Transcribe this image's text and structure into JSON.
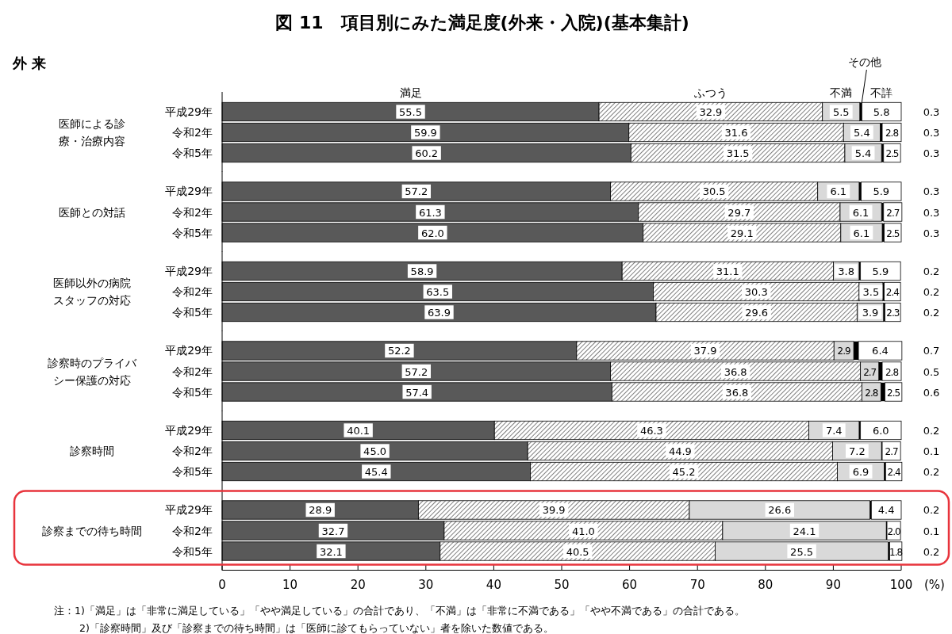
{
  "chart_data": [
    {
      "type": "bar",
      "orientation": "horizontal",
      "stacked": true,
      "title": "図 11　項目別にみた満足度(外来・入院)(基本集計)",
      "annotations": [
        "外 来"
      ],
      "ylabel": "医師による診療・治療内容",
      "categories": [
        "平成29年",
        "令和2年",
        "令和5年"
      ],
      "legend": "top",
      "xlim": [
        0,
        100
      ],
      "tick_labels": "y",
      "series": [
        {
          "name": "満足",
          "color": "#595959",
          "values": [
            55.5,
            59.9,
            60.2
          ],
          "value_labels": [
            "55.5",
            "59.9",
            "60.2"
          ]
        },
        {
          "name": "ふつう",
          "color": "#000000",
          "values": [
            32.9,
            31.6,
            31.5
          ],
          "value_labels": [
            "32.9",
            "31.6",
            "31.5"
          ]
        },
        {
          "name": "不満",
          "color": "#d9d9d9",
          "values": [
            5.5,
            5.4,
            5.4
          ],
          "value_labels": [
            "5.5",
            "5.4",
            "5.4"
          ]
        },
        {
          "name": "その他",
          "color": "#000000",
          "values": [
            0.3,
            0.3,
            0.3
          ],
          "value_labels": [
            "0.3",
            "0.3",
            "0.3"
          ]
        },
        {
          "name": "不詳",
          "color": "#ffffff",
          "values": [
            5.8,
            2.8,
            2.5
          ],
          "value_labels": [
            "5.8",
            "2.8",
            "2.5"
          ]
        }
      ]
    },
    {
      "type": "bar",
      "orientation": "horizontal",
      "stacked": true,
      "ylabel": "医師との対話",
      "categories": [
        "平成29年",
        "令和2年",
        "令和5年"
      ],
      "xlim": [
        0,
        100
      ],
      "tick_labels": "y",
      "series": [
        {
          "color": "#595959",
          "values": [
            57.2,
            61.3,
            62.0
          ],
          "value_labels": [
            "57.2",
            "61.3",
            "62.0"
          ]
        },
        {
          "color": "#000000",
          "values": [
            30.5,
            29.7,
            29.1
          ],
          "value_labels": [
            "30.5",
            "29.7",
            "29.1"
          ]
        },
        {
          "color": "#d9d9d9",
          "values": [
            6.1,
            6.1,
            6.1
          ],
          "value_labels": [
            "6.1",
            "6.1",
            "6.1"
          ]
        },
        {
          "color": "#000000",
          "values": [
            0.3,
            0.3,
            0.3
          ],
          "value_labels": [
            "0.3",
            "0.3",
            "0.3"
          ]
        },
        {
          "color": "#ffffff",
          "values": [
            5.9,
            2.7,
            2.5
          ],
          "value_labels": [
            "5.9",
            "2.7",
            "2.5"
          ]
        }
      ]
    },
    {
      "type": "bar",
      "orientation": "horizontal",
      "stacked": true,
      "ylabel": "医師以外の病院スタッフの対応",
      "categories": [
        "平成29年",
        "令和2年",
        "令和5年"
      ],
      "xlim": [
        0,
        100
      ],
      "tick_labels": "y",
      "series": [
        {
          "color": "#595959",
          "values": [
            58.9,
            63.5,
            63.9
          ],
          "value_labels": [
            "58.9",
            "63.5",
            "63.9"
          ]
        },
        {
          "color": "#000000",
          "values": [
            31.1,
            30.3,
            29.6
          ],
          "value_labels": [
            "31.1",
            "30.3",
            "29.6"
          ]
        },
        {
          "color": "#d9d9d9",
          "values": [
            3.8,
            3.5,
            3.9
          ],
          "value_labels": [
            "3.8",
            "3.5",
            "3.9"
          ]
        },
        {
          "color": "#000000",
          "values": [
            0.2,
            0.2,
            0.2
          ],
          "value_labels": [
            "0.2",
            "0.2",
            "0.2"
          ]
        },
        {
          "color": "#ffffff",
          "values": [
            5.9,
            2.4,
            2.3
          ],
          "value_labels": [
            "5.9",
            "2.4",
            "2.3"
          ]
        }
      ]
    },
    {
      "type": "bar",
      "orientation": "horizontal",
      "stacked": true,
      "ylabel": "診察時のプライバシー保護の対応",
      "categories": [
        "平成29年",
        "令和2年",
        "令和5年"
      ],
      "xlim": [
        0,
        100
      ],
      "tick_labels": "y",
      "series": [
        {
          "color": "#595959",
          "values": [
            52.2,
            57.2,
            57.4
          ],
          "value_labels": [
            "52.2",
            "57.2",
            "57.4"
          ]
        },
        {
          "color": "#000000",
          "values": [
            37.9,
            36.8,
            36.8
          ],
          "value_labels": [
            "37.9",
            "36.8",
            "36.8"
          ]
        },
        {
          "color": "#d9d9d9",
          "values": [
            2.9,
            2.7,
            2.8
          ],
          "value_labels": [
            "2.9",
            "2.7",
            "2.8"
          ]
        },
        {
          "color": "#000000",
          "values": [
            0.7,
            0.5,
            0.6
          ],
          "value_labels": [
            "0.7",
            "0.5",
            "0.6"
          ]
        },
        {
          "color": "#ffffff",
          "values": [
            6.4,
            2.8,
            2.5
          ],
          "value_labels": [
            "6.4",
            "2.8",
            "2.5"
          ]
        }
      ]
    },
    {
      "type": "bar",
      "orientation": "horizontal",
      "stacked": true,
      "ylabel": "診察時間",
      "categories": [
        "平成29年",
        "令和2年",
        "令和5年"
      ],
      "xlim": [
        0,
        100
      ],
      "tick_labels": "y",
      "series": [
        {
          "color": "#595959",
          "values": [
            40.1,
            45.0,
            45.4
          ],
          "value_labels": [
            "40.1",
            "45.0",
            "45.4"
          ]
        },
        {
          "color": "#000000",
          "values": [
            46.3,
            44.9,
            45.2
          ],
          "value_labels": [
            "46.3",
            "44.9",
            "45.2"
          ]
        },
        {
          "color": "#d9d9d9",
          "values": [
            7.4,
            7.2,
            6.9
          ],
          "value_labels": [
            "7.4",
            "7.2",
            "6.9"
          ]
        },
        {
          "color": "#000000",
          "values": [
            0.2,
            0.1,
            0.2
          ],
          "value_labels": [
            "0.2",
            "0.1",
            "0.2"
          ]
        },
        {
          "color": "#ffffff",
          "values": [
            6.0,
            2.7,
            2.4
          ],
          "value_labels": [
            "6.0",
            "2.7",
            "2.4"
          ]
        }
      ]
    },
    {
      "type": "bar",
      "orientation": "horizontal",
      "stacked": true,
      "ylabel": "診察までの待ち時間",
      "xlabel": "(%)",
      "categories": [
        "平成29年",
        "令和2年",
        "令和5年"
      ],
      "xlim": [
        0,
        100
      ],
      "xticks": [
        0,
        10,
        20,
        30,
        40,
        50,
        60,
        70,
        80,
        90,
        100
      ],
      "annotations": [
        "注：1)「満足」は「非常に満足している」「やや満足している」の合計であり、「不満」は「非常に不満である」「やや不満である」の合計である。",
        "2)「診察時間」及び「診察までの待ち時間」は「医師に診てもらっていない」者を除いた数値である。"
      ],
      "series": [
        {
          "color": "#595959",
          "values": [
            28.9,
            32.7,
            32.1
          ],
          "value_labels": [
            "28.9",
            "32.7",
            "32.1"
          ]
        },
        {
          "color": "#000000",
          "values": [
            39.9,
            41.0,
            40.5
          ],
          "value_labels": [
            "39.9",
            "41.0",
            "40.5"
          ]
        },
        {
          "color": "#d9d9d9",
          "values": [
            26.6,
            24.1,
            25.5
          ],
          "value_labels": [
            "26.6",
            "24.1",
            "25.5"
          ]
        },
        {
          "color": "#000000",
          "values": [
            0.2,
            0.1,
            0.2
          ],
          "value_labels": [
            "0.2",
            "0.1",
            "0.2"
          ]
        },
        {
          "color": "#ffffff",
          "values": [
            4.4,
            2.0,
            1.8
          ],
          "value_labels": [
            "4.4",
            "2.0",
            "1.8"
          ]
        }
      ]
    }
  ]
}
